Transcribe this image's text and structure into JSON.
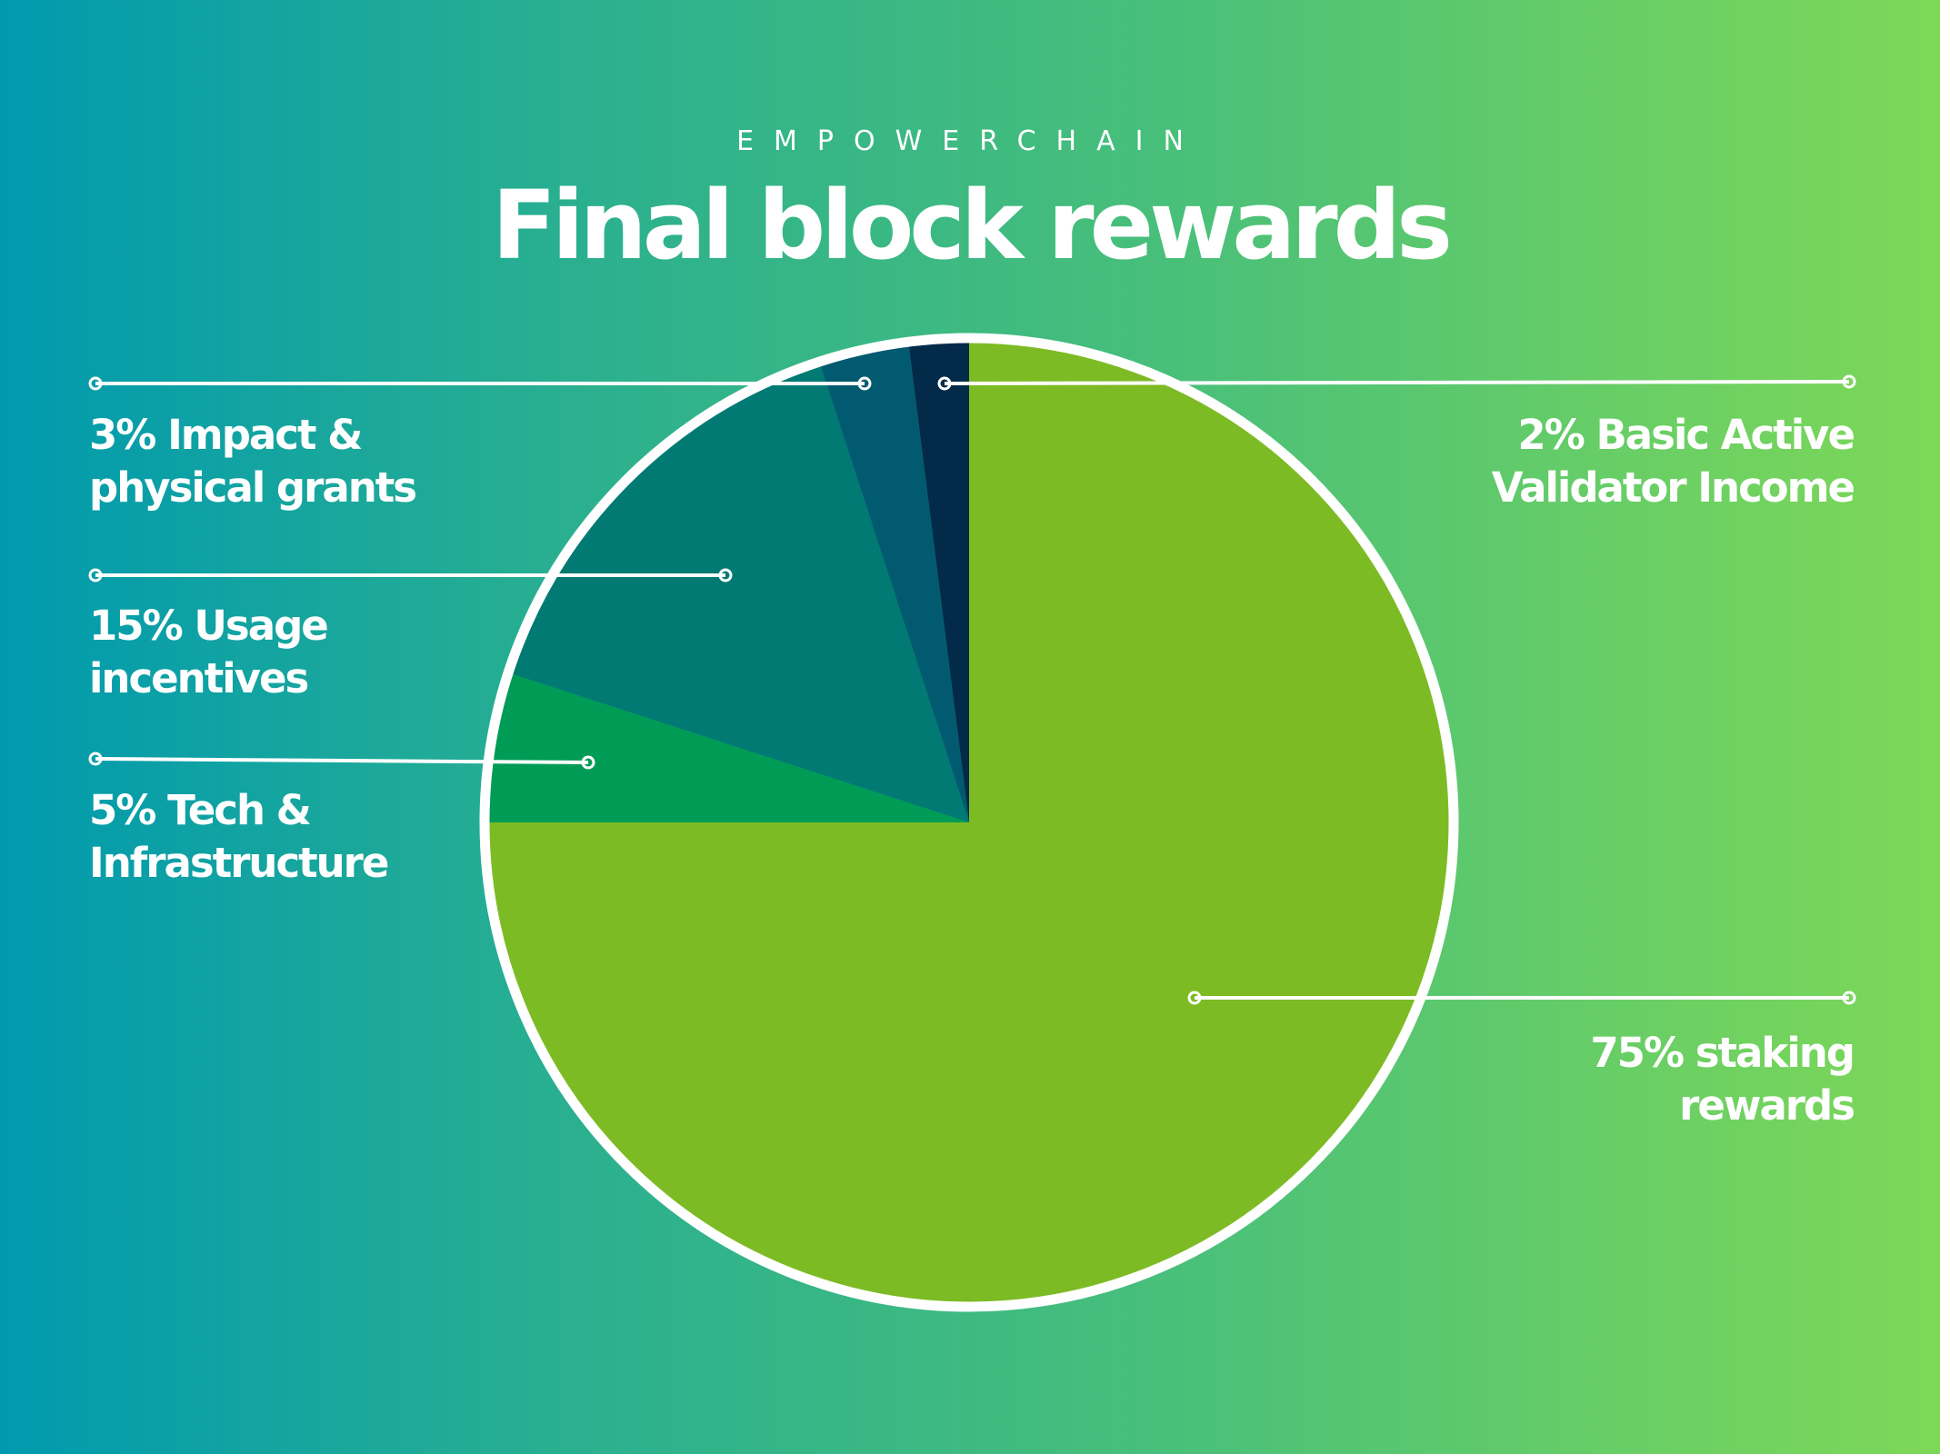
{
  "header": {
    "brand": "EMPOWERCHAIN",
    "title": "Final block rewards"
  },
  "chart_data": {
    "type": "pie",
    "title": "Final block rewards",
    "start_angle": "12 o'clock, clockwise",
    "slices": [
      {
        "value": 75,
        "label": "75% staking\nrewards",
        "color": "#7dbb24"
      },
      {
        "value": 5,
        "label": "5% Tech &\nInfrastructure",
        "color": "#009c55"
      },
      {
        "value": 15,
        "label": "15% Usage\nincentives",
        "color": "#007a73"
      },
      {
        "value": 3,
        "label": "3% Impact &\nphysical grants",
        "color": "#025a70"
      },
      {
        "value": 2,
        "label": "2% Basic Active\nValidator Income",
        "color": "#042a49"
      }
    ],
    "outline_color": "#ffffff"
  }
}
